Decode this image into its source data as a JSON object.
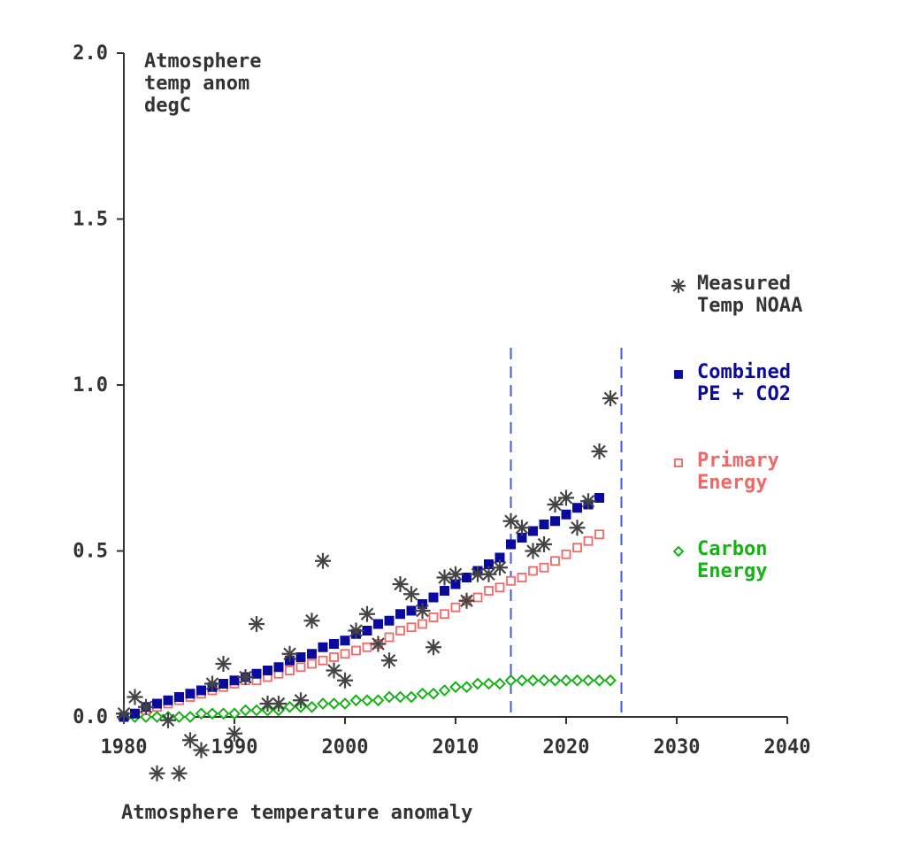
{
  "chart_data": {
    "type": "scatter",
    "title": "Atmosphere temperature anomaly",
    "ylabel_lines": [
      "Atmosphere",
      "temp anom",
      "degC"
    ],
    "xlabel": "",
    "xlim": [
      1980,
      2040
    ],
    "ylim": [
      0,
      2
    ],
    "x_ticks": [
      "1980",
      "1990",
      "2000",
      "2010",
      "2020",
      "2030",
      "2040"
    ],
    "y_ticks": [
      "0.0",
      "0.5",
      "1.0",
      "1.5",
      "2.0"
    ],
    "vlines": [
      2015,
      2025
    ],
    "series": [
      {
        "name": "Measured Temp NOAA",
        "legend_lines": [
          "Measured",
          "Temp NOAA"
        ],
        "marker": "asterisk",
        "color": "#444444",
        "x": [
          1980,
          1981,
          1982,
          1983,
          1984,
          1985,
          1986,
          1987,
          1988,
          1989,
          1990,
          1991,
          1992,
          1993,
          1994,
          1995,
          1996,
          1997,
          1998,
          1999,
          2000,
          2001,
          2002,
          2003,
          2004,
          2005,
          2006,
          2007,
          2008,
          2009,
          2010,
          2011,
          2012,
          2013,
          2014,
          2015,
          2016,
          2017,
          2018,
          2019,
          2020,
          2021,
          2022,
          2023,
          2024
        ],
        "values": [
          0.01,
          0.06,
          0.03,
          -0.17,
          -0.01,
          -0.17,
          -0.07,
          -0.1,
          0.1,
          0.16,
          -0.05,
          0.12,
          0.28,
          0.04,
          0.04,
          0.19,
          0.05,
          0.29,
          0.47,
          0.14,
          0.11,
          0.26,
          0.31,
          0.22,
          0.17,
          0.4,
          0.37,
          0.32,
          0.21,
          0.42,
          0.43,
          0.35,
          0.43,
          0.43,
          0.45,
          0.59,
          0.57,
          0.5,
          0.52,
          0.64,
          0.66,
          0.57,
          0.65,
          0.8,
          0.96
        ]
      },
      {
        "name": "Combined PE + CO2",
        "legend_lines": [
          "Combined",
          "PE + CO2"
        ],
        "marker": "square-filled",
        "color": "#0a0a9e",
        "x": [
          1980,
          1981,
          1982,
          1983,
          1984,
          1985,
          1986,
          1987,
          1988,
          1989,
          1990,
          1991,
          1992,
          1993,
          1994,
          1995,
          1996,
          1997,
          1998,
          1999,
          2000,
          2001,
          2002,
          2003,
          2004,
          2005,
          2006,
          2007,
          2008,
          2009,
          2010,
          2011,
          2012,
          2013,
          2014,
          2015,
          2016,
          2017,
          2018,
          2019,
          2020,
          2021,
          2022,
          2023
        ],
        "values": [
          0.0,
          0.01,
          0.03,
          0.04,
          0.05,
          0.06,
          0.07,
          0.08,
          0.09,
          0.1,
          0.11,
          0.12,
          0.13,
          0.14,
          0.15,
          0.17,
          0.18,
          0.19,
          0.21,
          0.22,
          0.23,
          0.25,
          0.26,
          0.28,
          0.29,
          0.31,
          0.32,
          0.34,
          0.36,
          0.38,
          0.4,
          0.42,
          0.44,
          0.46,
          0.48,
          0.52,
          0.54,
          0.56,
          0.58,
          0.59,
          0.61,
          0.63,
          0.64,
          0.66
        ]
      },
      {
        "name": "Primary Energy",
        "legend_lines": [
          "Primary",
          "Energy"
        ],
        "marker": "square-open",
        "color": "#f06868",
        "x": [
          1980,
          1981,
          1982,
          1983,
          1984,
          1985,
          1986,
          1987,
          1988,
          1989,
          1990,
          1991,
          1992,
          1993,
          1994,
          1995,
          1996,
          1997,
          1998,
          1999,
          2000,
          2001,
          2002,
          2003,
          2004,
          2005,
          2006,
          2007,
          2008,
          2009,
          2010,
          2011,
          2012,
          2013,
          2014,
          2015,
          2016,
          2017,
          2018,
          2019,
          2020,
          2021,
          2022,
          2023
        ],
        "values": [
          0.0,
          0.01,
          0.02,
          0.03,
          0.04,
          0.05,
          0.06,
          0.07,
          0.08,
          0.09,
          0.1,
          0.11,
          0.11,
          0.12,
          0.13,
          0.14,
          0.15,
          0.16,
          0.17,
          0.18,
          0.19,
          0.2,
          0.21,
          0.22,
          0.24,
          0.26,
          0.27,
          0.28,
          0.3,
          0.31,
          0.33,
          0.35,
          0.36,
          0.38,
          0.39,
          0.41,
          0.42,
          0.44,
          0.45,
          0.47,
          0.49,
          0.51,
          0.53,
          0.55
        ]
      },
      {
        "name": "Carbon Energy",
        "legend_lines": [
          "Carbon",
          "Energy"
        ],
        "marker": "diamond-open",
        "color": "#18b018",
        "x": [
          1980,
          1981,
          1982,
          1983,
          1984,
          1985,
          1986,
          1987,
          1988,
          1989,
          1990,
          1991,
          1992,
          1993,
          1994,
          1995,
          1996,
          1997,
          1998,
          1999,
          2000,
          2001,
          2002,
          2003,
          2004,
          2005,
          2006,
          2007,
          2008,
          2009,
          2010,
          2011,
          2012,
          2013,
          2014,
          2015,
          2016,
          2017,
          2018,
          2019,
          2020,
          2021,
          2022,
          2023,
          2024
        ],
        "values": [
          0.0,
          0.0,
          0.0,
          0.0,
          0.0,
          0.0,
          0.0,
          0.01,
          0.01,
          0.01,
          0.01,
          0.02,
          0.02,
          0.02,
          0.02,
          0.03,
          0.03,
          0.03,
          0.04,
          0.04,
          0.04,
          0.05,
          0.05,
          0.05,
          0.06,
          0.06,
          0.06,
          0.07,
          0.07,
          0.08,
          0.09,
          0.09,
          0.1,
          0.1,
          0.1,
          0.11,
          0.11,
          0.11,
          0.11,
          0.11,
          0.11,
          0.11,
          0.11,
          0.11,
          0.11
        ]
      }
    ]
  }
}
